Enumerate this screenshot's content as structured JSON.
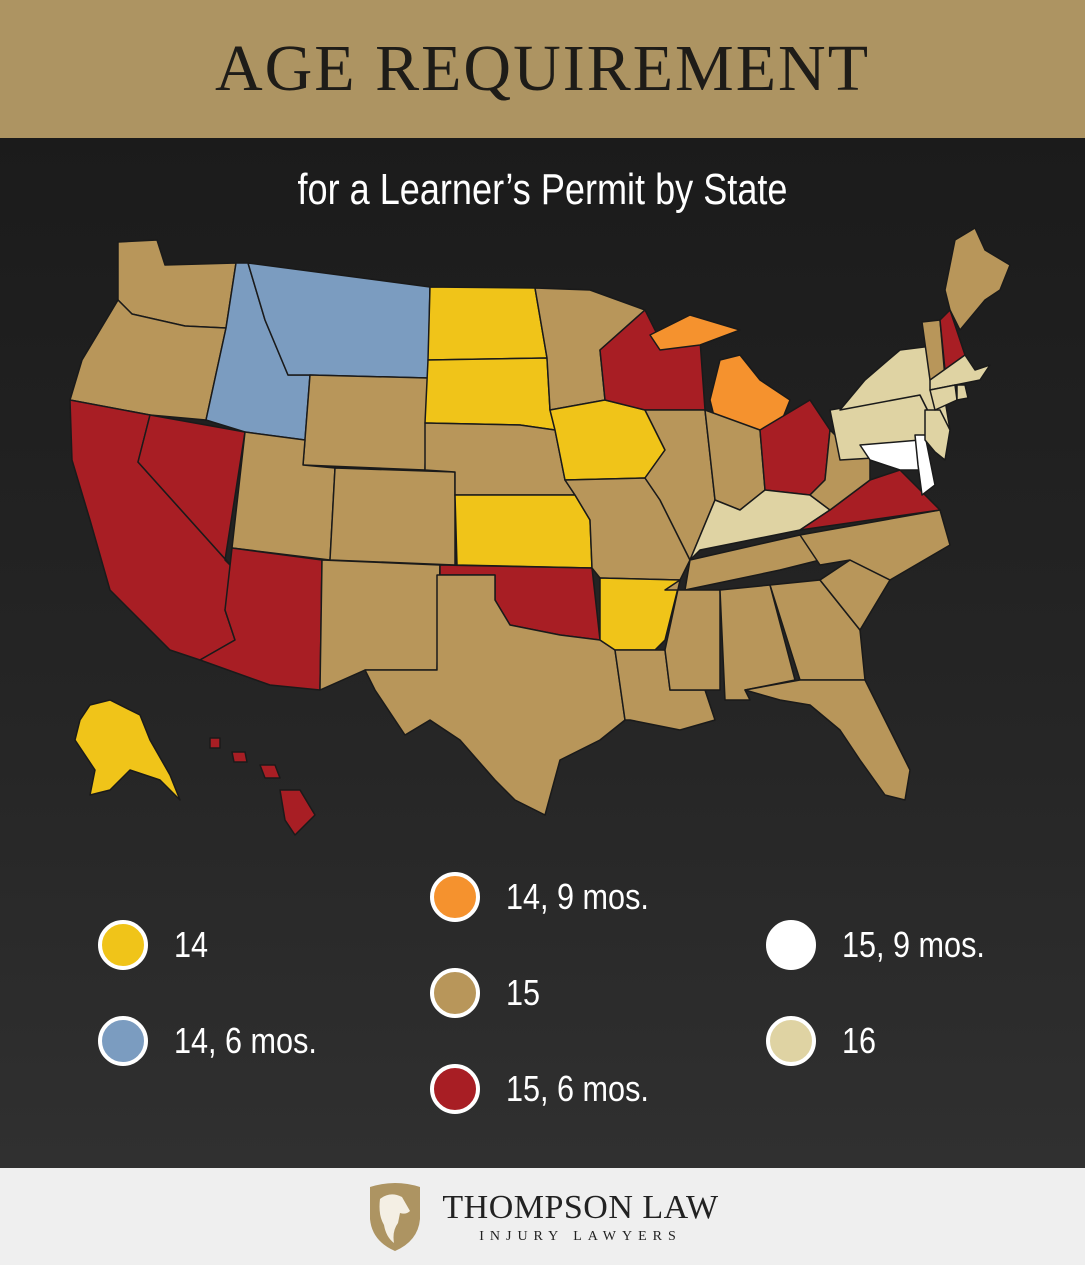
{
  "header": {
    "title": "AGE REQUIREMENT"
  },
  "subtitle": "for a Learner’s Permit by State",
  "colors": {
    "14": "#f0c419",
    "14_6": "#7b9cc0",
    "14_9": "#f5922e",
    "15": "#b8965a",
    "15_6": "#a81e24",
    "15_9": "#ffffff",
    "16": "#dfd3a3"
  },
  "legend": [
    {
      "key": "14",
      "label": "14"
    },
    {
      "key": "14_6",
      "label": "14, 6 mos."
    },
    {
      "key": "14_9",
      "label": "14, 9 mos."
    },
    {
      "key": "15",
      "label": "15"
    },
    {
      "key": "15_6",
      "label": "15, 6 mos."
    },
    {
      "key": "15_9",
      "label": "15, 9 mos."
    },
    {
      "key": "16",
      "label": "16"
    }
  ],
  "states": {
    "WA": "15",
    "OR": "15",
    "CA": "15_6",
    "NV": "15_6",
    "ID": "14_6",
    "MT": "14_6",
    "WY": "15",
    "UT": "15",
    "AZ": "15_6",
    "CO": "15",
    "NM": "15",
    "ND": "14",
    "SD": "14",
    "NE": "15",
    "KS": "14",
    "OK": "15_6",
    "TX": "15",
    "MN": "15",
    "IA": "14",
    "MO": "15",
    "AR": "14",
    "LA": "15",
    "WI": "15_6",
    "IL": "15",
    "MI": "14_9",
    "IN": "15",
    "OH": "15_6",
    "KY": "16",
    "TN": "15",
    "MS": "15",
    "AL": "15",
    "GA": "15",
    "FL": "15",
    "SC": "15",
    "NC": "15",
    "VA": "15_6",
    "WV": "15",
    "PA": "16",
    "NY": "16",
    "MD": "15_9",
    "DE": "15_9",
    "NJ": "16",
    "VT": "15",
    "NH": "15_6",
    "ME": "15",
    "MA": "16",
    "CT": "16",
    "RI": "16",
    "AK": "14",
    "HI": "15_6"
  },
  "footer": {
    "brand": "THOMPSON LAW",
    "tagline": "INJURY LAWYERS",
    "logo_icon": "lion-shield-icon"
  }
}
